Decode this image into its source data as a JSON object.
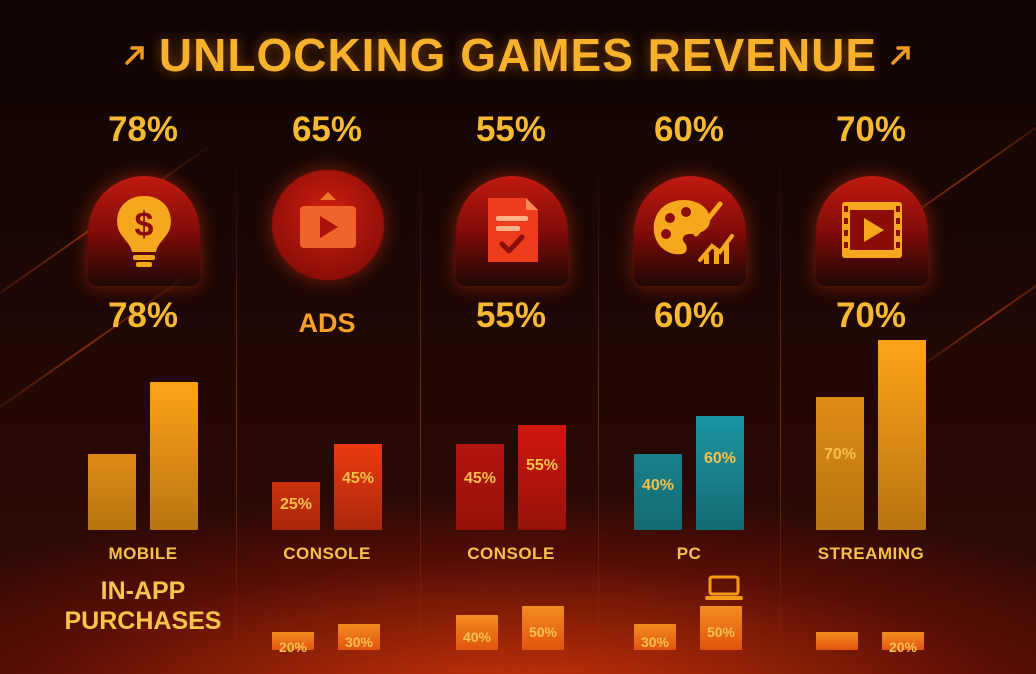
{
  "title": "UNLOCKING GAMES REVENUE",
  "colors": {
    "accent": "#f6b92f",
    "orange_bar": "#f59a17",
    "red_bar": "#e2360f",
    "teal_bar": "#1b8f9a",
    "background": "#1c0705"
  },
  "icons": [
    "dollar-lightbulb-icon",
    "video-ad-icon",
    "document-check-icon",
    "palette-chart-icon",
    "film-play-icon"
  ],
  "chart_data": {
    "type": "bar",
    "title": "UNLOCKING GAMES REVENUE",
    "panels": [
      {
        "top_value": "78%",
        "mid_label": "78%",
        "category": "MOBILE",
        "subtitle_lines": [
          "IN-APP",
          "PURCHASES"
        ],
        "bars": [
          {
            "value": 40
          },
          {
            "value": 78
          }
        ],
        "small_bars": [],
        "series_color": "#f59a17"
      },
      {
        "top_value": "65%",
        "mid_label": "ADS",
        "category": "CONSOLE",
        "bars": [
          {
            "value": 25,
            "label": "25%"
          },
          {
            "value": 45,
            "label": "45%"
          }
        ],
        "small_bars": [
          {
            "value": 20,
            "label": "20%"
          },
          {
            "value": 30,
            "label": "30%"
          }
        ],
        "series_color": "#e2360f"
      },
      {
        "top_value": "55%",
        "mid_label": "55%",
        "category": "CONSOLE",
        "bars": [
          {
            "value": 45,
            "label": "45%"
          },
          {
            "value": 55,
            "label": "55%"
          }
        ],
        "small_bars": [
          {
            "value": 40,
            "label": "40%"
          },
          {
            "value": 50,
            "label": "50%"
          }
        ],
        "series_color": "#c8160f"
      },
      {
        "top_value": "60%",
        "mid_label": "60%",
        "category": "PC",
        "bars": [
          {
            "value": 40,
            "label": "40%"
          },
          {
            "value": 60,
            "label": "60%"
          }
        ],
        "small_bars": [
          {
            "value": 30,
            "label": "30%"
          },
          {
            "value": 50,
            "label": "50%"
          }
        ],
        "series_color": "#1b8f9a"
      },
      {
        "top_value": "70%",
        "mid_label": "70%",
        "category": "STREAMING",
        "bars": [
          {
            "value": 70,
            "label": "70%"
          },
          {
            "value": 100
          }
        ],
        "small_bars": [
          {
            "value": 20
          },
          {
            "value": 20,
            "label": "20%"
          }
        ],
        "series_color": "#f59a17"
      }
    ]
  }
}
